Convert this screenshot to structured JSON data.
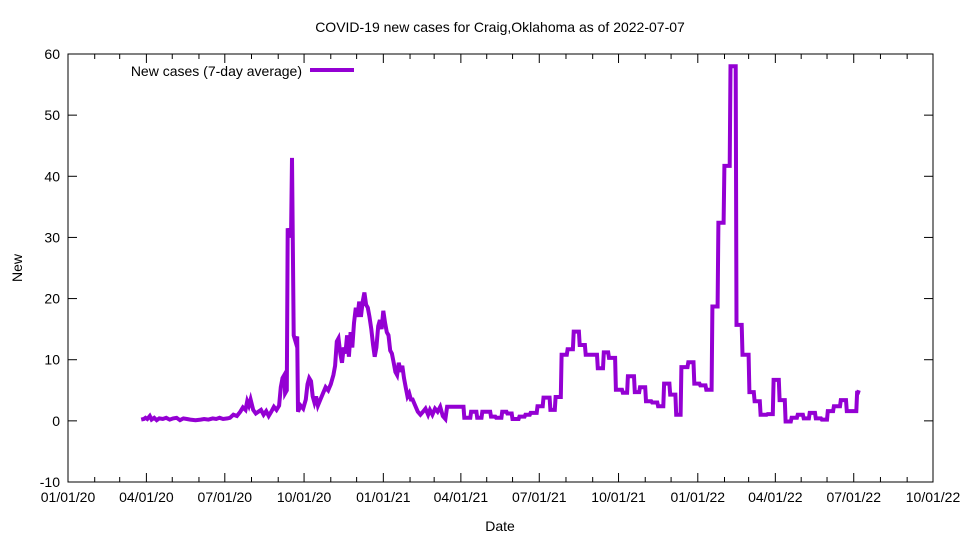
{
  "chart_data": {
    "type": "line",
    "title": "COVID-19 new cases for Craig,Oklahoma as of 2022-07-07",
    "xlabel": "Date",
    "ylabel": "New",
    "x_units": "days since 2020-01-01",
    "xlim": [
      0,
      1004
    ],
    "ylim": [
      -10,
      60
    ],
    "yticks": [
      -10,
      0,
      10,
      20,
      30,
      40,
      50,
      60
    ],
    "xticks": [
      {
        "day": 0,
        "label": "01/01/20"
      },
      {
        "day": 91,
        "label": "04/01/20"
      },
      {
        "day": 182,
        "label": "07/01/20"
      },
      {
        "day": 274,
        "label": "10/01/20"
      },
      {
        "day": 366,
        "label": "01/01/21"
      },
      {
        "day": 456,
        "label": "04/01/21"
      },
      {
        "day": 547,
        "label": "07/01/21"
      },
      {
        "day": 639,
        "label": "10/01/21"
      },
      {
        "day": 731,
        "label": "01/01/22"
      },
      {
        "day": 821,
        "label": "04/01/22"
      },
      {
        "day": 912,
        "label": "07/01/22"
      },
      {
        "day": 1004,
        "label": "10/01/22"
      }
    ],
    "minor_xticks": [
      31,
      60,
      121,
      152,
      213,
      244,
      305,
      335,
      397,
      425,
      486,
      516,
      578,
      609,
      670,
      700,
      762,
      790,
      851,
      881,
      943,
      974
    ],
    "grid": false,
    "legend_placement": "top-left",
    "series": [
      {
        "name": "New cases (7-day average)",
        "color": "#9400d3",
        "points": [
          [
            85,
            0.2
          ],
          [
            88,
            0.3
          ],
          [
            90,
            0.5
          ],
          [
            92,
            0.3
          ],
          [
            95,
            0.8
          ],
          [
            97,
            0.2
          ],
          [
            100,
            0.5
          ],
          [
            103,
            0.1
          ],
          [
            106,
            0.4
          ],
          [
            110,
            0.3
          ],
          [
            114,
            0.5
          ],
          [
            118,
            0.2
          ],
          [
            122,
            0.4
          ],
          [
            126,
            0.5
          ],
          [
            130,
            0.1
          ],
          [
            134,
            0.4
          ],
          [
            138,
            0.3
          ],
          [
            142,
            0.2
          ],
          [
            148,
            0.1
          ],
          [
            154,
            0.2
          ],
          [
            158,
            0.3
          ],
          [
            163,
            0.2
          ],
          [
            168,
            0.4
          ],
          [
            172,
            0.3
          ],
          [
            176,
            0.5
          ],
          [
            180,
            0.3
          ],
          [
            185,
            0.4
          ],
          [
            188,
            0.5
          ],
          [
            192,
            1.0
          ],
          [
            196,
            0.8
          ],
          [
            200,
            1.5
          ],
          [
            203,
            2.2
          ],
          [
            206,
            1.8
          ],
          [
            208,
            3.2
          ],
          [
            210,
            2.5
          ],
          [
            212,
            3.5
          ],
          [
            215,
            1.8
          ],
          [
            218,
            1.2
          ],
          [
            221,
            1.5
          ],
          [
            224,
            1.8
          ],
          [
            227,
            1.0
          ],
          [
            230,
            1.6
          ],
          [
            233,
            0.8
          ],
          [
            236,
            1.5
          ],
          [
            239,
            2.3
          ],
          [
            242,
            1.8
          ],
          [
            245,
            2.5
          ],
          [
            247,
            5.5
          ],
          [
            249,
            7.0
          ],
          [
            251,
            7.5
          ],
          [
            252,
            4.5
          ],
          [
            254,
            5.0
          ],
          [
            255,
            31.5
          ],
          [
            257,
            30.0
          ],
          [
            259,
            31.0
          ],
          [
            260,
            43.0
          ],
          [
            262,
            14.0
          ],
          [
            264,
            13.0
          ],
          [
            266,
            13.8
          ],
          [
            267,
            1.5
          ],
          [
            270,
            2.5
          ],
          [
            273,
            2.0
          ],
          [
            276,
            3.5
          ],
          [
            278,
            6.0
          ],
          [
            280,
            7.0
          ],
          [
            282,
            6.5
          ],
          [
            284,
            4.0
          ],
          [
            286,
            3.0
          ],
          [
            288,
            4.0
          ],
          [
            290,
            2.5
          ],
          [
            293,
            3.5
          ],
          [
            296,
            4.5
          ],
          [
            299,
            5.5
          ],
          [
            302,
            5.0
          ],
          [
            305,
            6.0
          ],
          [
            308,
            7.5
          ],
          [
            310,
            9.0
          ],
          [
            312,
            13.0
          ],
          [
            314,
            13.5
          ],
          [
            316,
            11.0
          ],
          [
            318,
            9.5
          ],
          [
            320,
            12.0
          ],
          [
            322,
            11.0
          ],
          [
            324,
            14.0
          ],
          [
            326,
            10.5
          ],
          [
            328,
            14.5
          ],
          [
            330,
            12.0
          ],
          [
            332,
            16.0
          ],
          [
            334,
            18.5
          ],
          [
            336,
            17.0
          ],
          [
            338,
            19.5
          ],
          [
            340,
            17.0
          ],
          [
            342,
            19.5
          ],
          [
            344,
            21.0
          ],
          [
            346,
            19.0
          ],
          [
            348,
            18.5
          ],
          [
            350,
            17.0
          ],
          [
            352,
            15.0
          ],
          [
            354,
            12.5
          ],
          [
            356,
            10.5
          ],
          [
            358,
            12.0
          ],
          [
            360,
            15.5
          ],
          [
            362,
            16.5
          ],
          [
            364,
            15.0
          ],
          [
            366,
            18.0
          ],
          [
            368,
            16.0
          ],
          [
            370,
            14.5
          ],
          [
            372,
            14.0
          ],
          [
            374,
            11.5
          ],
          [
            376,
            11.0
          ],
          [
            378,
            9.5
          ],
          [
            380,
            8.0
          ],
          [
            382,
            7.5
          ],
          [
            384,
            9.5
          ],
          [
            386,
            8.0
          ],
          [
            388,
            9.0
          ],
          [
            390,
            7.0
          ],
          [
            392,
            5.5
          ],
          [
            394,
            4.0
          ],
          [
            396,
            4.5
          ],
          [
            398,
            3.5
          ],
          [
            400,
            3.5
          ],
          [
            403,
            2.5
          ],
          [
            406,
            1.5
          ],
          [
            409,
            1.0
          ],
          [
            412,
            1.5
          ],
          [
            415,
            2.0
          ],
          [
            418,
            1.0
          ],
          [
            420,
            1.8
          ],
          [
            423,
            1.0
          ],
          [
            426,
            2.0
          ],
          [
            429,
            1.5
          ],
          [
            432,
            2.3
          ],
          [
            435,
            0.8
          ],
          [
            438,
            0.3
          ],
          [
            440,
            2.3
          ],
          [
            445,
            2.3
          ]
        ],
        "weekly_steps": [
          [
            445,
            2.3
          ],
          [
            459,
            0.5
          ],
          [
            467,
            1.5
          ],
          [
            474,
            0.5
          ],
          [
            480,
            1.5
          ],
          [
            490,
            0.7
          ],
          [
            496,
            0.5
          ],
          [
            503,
            1.5
          ],
          [
            509,
            1.2
          ],
          [
            515,
            0.3
          ],
          [
            523,
            0.7
          ],
          [
            530,
            1.0
          ],
          [
            536,
            1.3
          ],
          [
            544,
            2.4
          ],
          [
            551,
            3.8
          ],
          [
            559,
            1.8
          ],
          [
            565,
            3.9
          ],
          [
            572,
            10.8
          ],
          [
            579,
            11.7
          ],
          [
            586,
            14.6
          ],
          [
            593,
            12.4
          ],
          [
            600,
            10.8
          ],
          [
            614,
            8.6
          ],
          [
            621,
            11.2
          ],
          [
            627,
            10.3
          ],
          [
            635,
            5.1
          ],
          [
            643,
            4.6
          ],
          [
            649,
            7.3
          ],
          [
            657,
            4.7
          ],
          [
            663,
            5.5
          ],
          [
            670,
            3.2
          ],
          [
            677,
            3.0
          ],
          [
            684,
            2.4
          ],
          [
            691,
            6.1
          ],
          [
            698,
            4.3
          ],
          [
            705,
            1.0
          ],
          [
            711,
            8.8
          ],
          [
            719,
            9.6
          ],
          [
            726,
            6.1
          ],
          [
            733,
            5.8
          ],
          [
            740,
            5.1
          ],
          [
            747,
            18.7
          ],
          [
            754,
            32.4
          ],
          [
            761,
            41.7
          ],
          [
            768,
            58.0
          ],
          [
            775,
            15.7
          ],
          [
            782,
            10.8
          ],
          [
            790,
            4.7
          ],
          [
            796,
            3.2
          ],
          [
            803,
            1.0
          ],
          [
            811,
            1.1
          ],
          [
            818,
            6.7
          ],
          [
            825,
            3.4
          ],
          [
            832,
            -0.1
          ],
          [
            839,
            0.5
          ],
          [
            846,
            1.0
          ],
          [
            853,
            0.4
          ],
          [
            860,
            1.3
          ],
          [
            867,
            0.4
          ],
          [
            874,
            0.2
          ],
          [
            881,
            1.6
          ],
          [
            888,
            2.4
          ],
          [
            896,
            3.4
          ],
          [
            903,
            1.6
          ],
          [
            915,
            4.6
          ],
          [
            917,
            5.0
          ]
        ]
      }
    ]
  }
}
